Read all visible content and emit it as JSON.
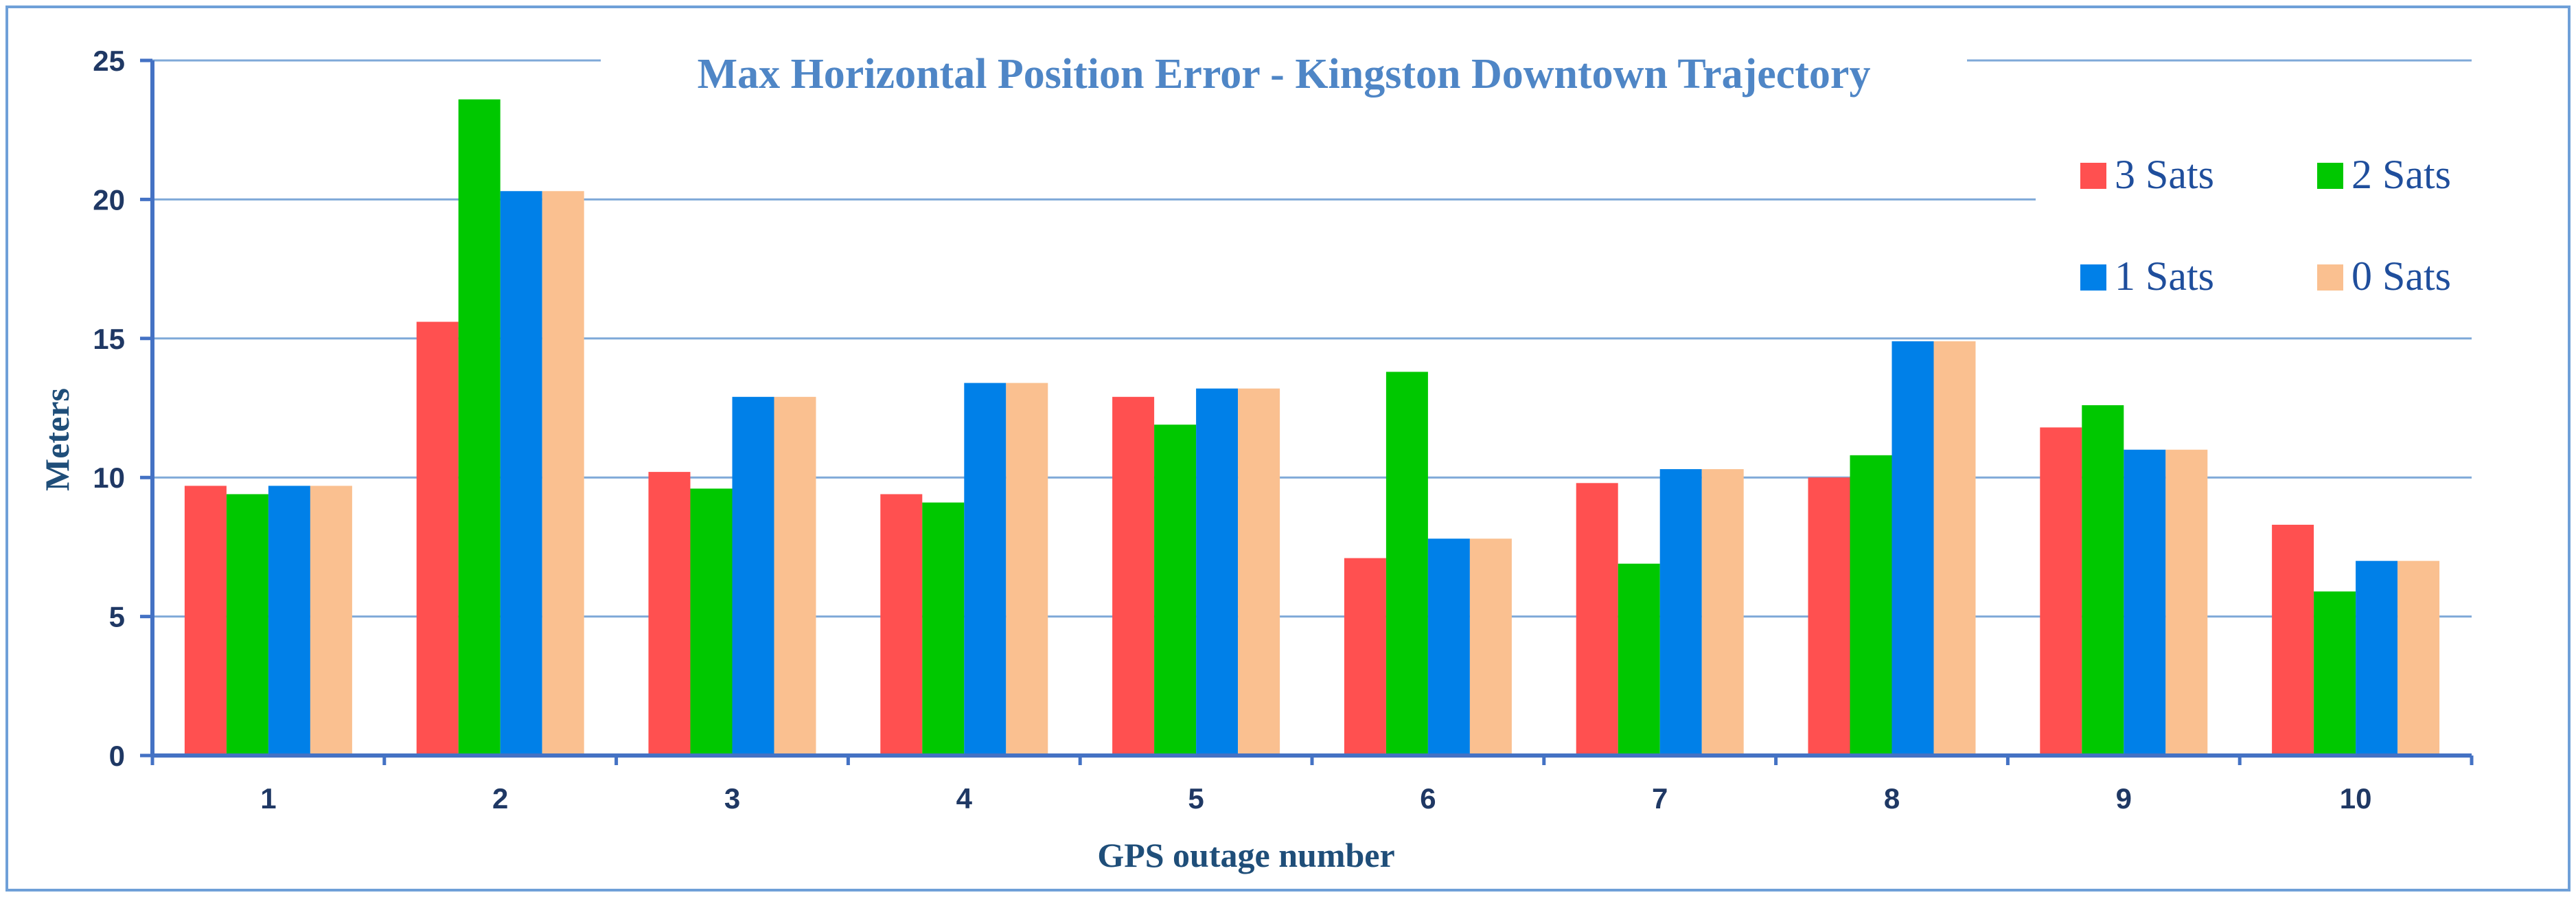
{
  "chart_data": {
    "type": "bar",
    "title": "Max Horizontal Position Error - Kingston Downtown Trajectory",
    "xlabel": "GPS outage number",
    "ylabel": "Meters",
    "categories": [
      "1",
      "2",
      "3",
      "4",
      "5",
      "6",
      "7",
      "8",
      "9",
      "10"
    ],
    "ylim": [
      0,
      25
    ],
    "yticks": [
      "0",
      "5",
      "10",
      "15",
      "20",
      "25"
    ],
    "grid": true,
    "legend_position": "top-right",
    "series": [
      {
        "name": "3 Sats",
        "color": "#ff5050",
        "values": [
          9.7,
          15.6,
          10.2,
          9.4,
          12.9,
          7.1,
          9.8,
          10.0,
          11.8,
          8.3
        ]
      },
      {
        "name": "2 Sats",
        "color": "#00c800",
        "values": [
          9.4,
          23.6,
          9.6,
          9.1,
          11.9,
          13.8,
          6.9,
          10.8,
          12.6,
          5.9
        ]
      },
      {
        "name": "1 Sats",
        "color": "#0080e8",
        "values": [
          9.7,
          20.3,
          12.9,
          13.4,
          13.2,
          7.8,
          10.3,
          14.9,
          11.0,
          7.0
        ]
      },
      {
        "name": "0 Sats",
        "color": "#fac090",
        "values": [
          9.7,
          20.3,
          12.9,
          13.4,
          13.2,
          7.8,
          10.3,
          14.9,
          11.0,
          7.0
        ]
      }
    ]
  }
}
